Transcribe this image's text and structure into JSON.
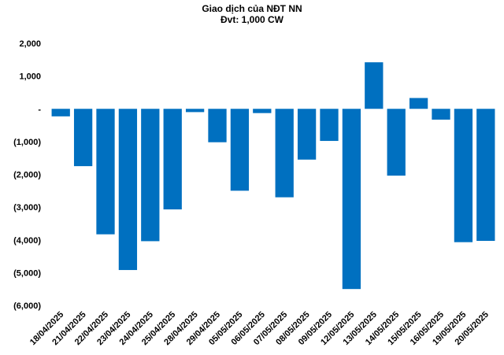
{
  "chart_data": {
    "type": "bar",
    "title": "Giao dịch của NĐT NN",
    "subtitle": "Đvt: 1,000 CW",
    "xlabel": "",
    "ylabel": "",
    "ylim": [
      -6000,
      2000
    ],
    "yticks": [
      2000,
      1000,
      0,
      -1000,
      -2000,
      -3000,
      -4000,
      -5000,
      -6000
    ],
    "ytick_labels": [
      "2,000",
      "1,000",
      "-",
      "(1,000)",
      "(2,000)",
      "(3,000)",
      "(4,000)",
      "(5,000)",
      "(6,000)"
    ],
    "grid": false,
    "bar_color": "#0070C0",
    "categories": [
      "18/04/2025",
      "21/04/2025",
      "22/04/2025",
      "23/04/2025",
      "24/04/2025",
      "25/04/2025",
      "28/04/2025",
      "29/04/2025",
      "05/05/2025",
      "06/05/2025",
      "07/05/2025",
      "08/05/2025",
      "09/05/2025",
      "12/05/2025",
      "13/05/2025",
      "14/05/2025",
      "15/05/2025",
      "16/05/2025",
      "19/05/2025",
      "20/05/2025"
    ],
    "values": [
      -230,
      -1750,
      -3830,
      -4920,
      -4040,
      -3070,
      -100,
      -1020,
      -2500,
      -130,
      -2700,
      -1550,
      -980,
      -5500,
      1420,
      -2040,
      330,
      -330,
      -4070,
      -4030
    ]
  }
}
